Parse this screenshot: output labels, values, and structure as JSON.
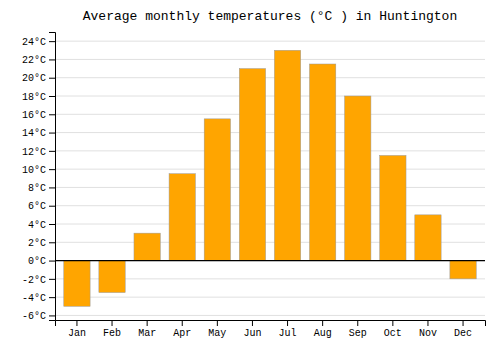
{
  "chart_data": {
    "type": "bar",
    "title": "Average monthly temperatures (°C ) in Huntington",
    "categories": [
      "Jan",
      "Feb",
      "Mar",
      "Apr",
      "May",
      "Jun",
      "Jul",
      "Aug",
      "Sep",
      "Oct",
      "Nov",
      "Dec"
    ],
    "values": [
      -5,
      -3.5,
      3,
      9.5,
      15.5,
      21,
      23,
      21.5,
      18,
      11.5,
      5,
      -2
    ],
    "color": "#FFA500",
    "ylim": [
      -6.5,
      25
    ],
    "yticks": [
      {
        "value": -6,
        "label": "-6°C"
      },
      {
        "value": -4,
        "label": "-4°C"
      },
      {
        "value": -2,
        "label": "-2°C"
      },
      {
        "value": 0,
        "label": "0°C"
      },
      {
        "value": 2,
        "label": "2°C"
      },
      {
        "value": 4,
        "label": "4°C"
      },
      {
        "value": 6,
        "label": "6°C"
      },
      {
        "value": 8,
        "label": "8°C"
      },
      {
        "value": 10,
        "label": "10°C"
      },
      {
        "value": 12,
        "label": "12°C"
      },
      {
        "value": 14,
        "label": "14°C"
      },
      {
        "value": 16,
        "label": "16°C"
      },
      {
        "value": 18,
        "label": "18°C"
      },
      {
        "value": 20,
        "label": "20°C"
      },
      {
        "value": 22,
        "label": "22°C"
      },
      {
        "value": 24,
        "label": "24°C"
      }
    ],
    "grid": true
  }
}
